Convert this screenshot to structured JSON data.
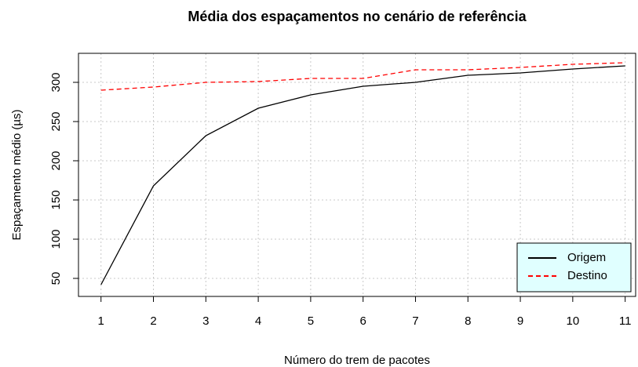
{
  "chart_data": {
    "type": "line",
    "title": "Média dos espaçamentos no cenário de referência",
    "x_label": "Número do trem de pacotes",
    "y_label": "Espaçamento médio (µs)",
    "x": [
      1,
      2,
      3,
      4,
      5,
      6,
      7,
      8,
      9,
      10,
      11
    ],
    "series": [
      {
        "name": "Origem",
        "color": "#000000",
        "dash": "solid",
        "values": [
          42,
          168,
          232,
          267,
          284,
          295,
          300,
          309,
          312,
          317,
          321
        ]
      },
      {
        "name": "Destino",
        "color": "#ff0000",
        "dash": "dashed",
        "values": [
          290,
          294,
          300,
          301,
          305,
          305,
          316,
          316,
          319,
          323,
          325
        ]
      }
    ],
    "xlim": [
      0.57,
      11.2
    ],
    "ylim": [
      27,
      337
    ],
    "xticks": [
      1,
      2,
      3,
      4,
      5,
      6,
      7,
      8,
      9,
      10,
      11
    ],
    "yticks": [
      50,
      100,
      150,
      200,
      250,
      300
    ],
    "grid": true,
    "legend": "bottomright",
    "legend_background": "#e0ffff"
  }
}
